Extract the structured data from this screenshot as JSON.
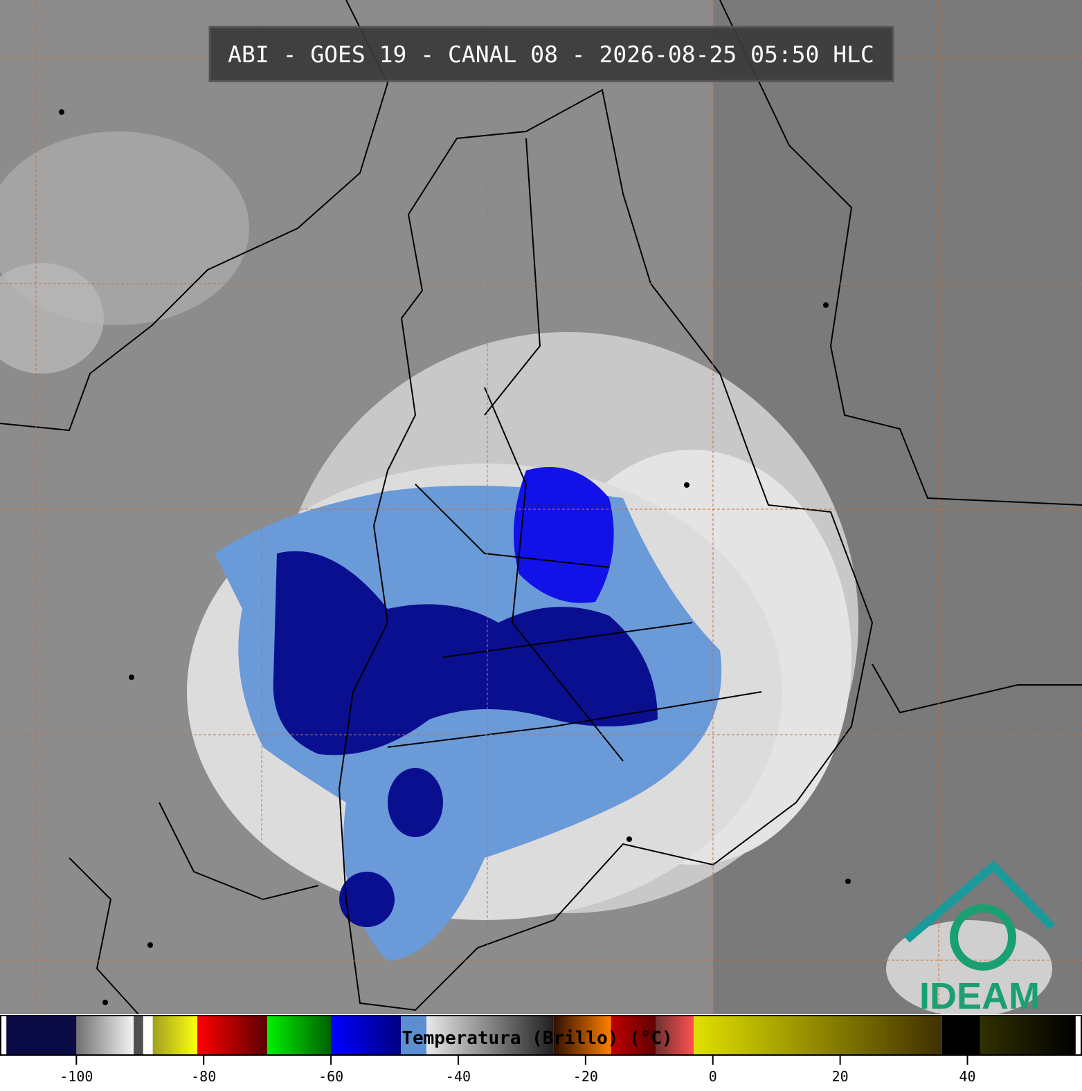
{
  "header": {
    "title": "ABI - GOES 19 - CANAL 08 - 2026-08-25 05:50 HLC"
  },
  "logo": {
    "text": "IDEAM"
  },
  "colorbar": {
    "label": "Temperatura (Brillo) (°C)",
    "xlim": [
      -112,
      58
    ],
    "xticks": [
      -100,
      -80,
      -60,
      -40,
      -20,
      0,
      20,
      40
    ],
    "segments": [
      {
        "from": -112,
        "to": -111,
        "color_start": "#ffffff",
        "color_end": "#ffffff"
      },
      {
        "from": -111,
        "to": -100,
        "color_start": "#0b0b45",
        "color_end": "#0b0b45"
      },
      {
        "from": -100,
        "to": -91,
        "color_start": "#707070",
        "color_end": "#f4f4f4"
      },
      {
        "from": -91,
        "to": -89.5,
        "color_start": "#505050",
        "color_end": "#505050"
      },
      {
        "from": -89.5,
        "to": -88,
        "color_start": "#ffffff",
        "color_end": "#ffffff"
      },
      {
        "from": -88,
        "to": -81,
        "color_start": "#a0a020",
        "color_end": "#ffff10"
      },
      {
        "from": -81,
        "to": -70,
        "color_start": "#ff0000",
        "color_end": "#5a0000"
      },
      {
        "from": -70,
        "to": -60,
        "color_start": "#00f000",
        "color_end": "#006000"
      },
      {
        "from": -60,
        "to": -49,
        "color_start": "#0000ff",
        "color_end": "#000080"
      },
      {
        "from": -49,
        "to": -45,
        "color_start": "#5c8fd0",
        "color_end": "#5c8fd0"
      },
      {
        "from": -45,
        "to": -25,
        "color_start": "#e8e8e8",
        "color_end": "#202020"
      },
      {
        "from": -25,
        "to": -16,
        "color_start": "#301000",
        "color_end": "#ff8000"
      },
      {
        "from": -16,
        "to": -9,
        "color_start": "#c00000",
        "color_end": "#600000"
      },
      {
        "from": -9,
        "to": -3,
        "color_start": "#703030",
        "color_end": "#ff5050"
      },
      {
        "from": -3,
        "to": 36,
        "color_start": "#e0e000",
        "color_end": "#403000"
      },
      {
        "from": 36,
        "to": 42,
        "color_start": "#000000",
        "color_end": "#000000"
      },
      {
        "from": 42,
        "to": 57,
        "color_start": "#303000",
        "color_end": "#000000"
      }
    ]
  }
}
